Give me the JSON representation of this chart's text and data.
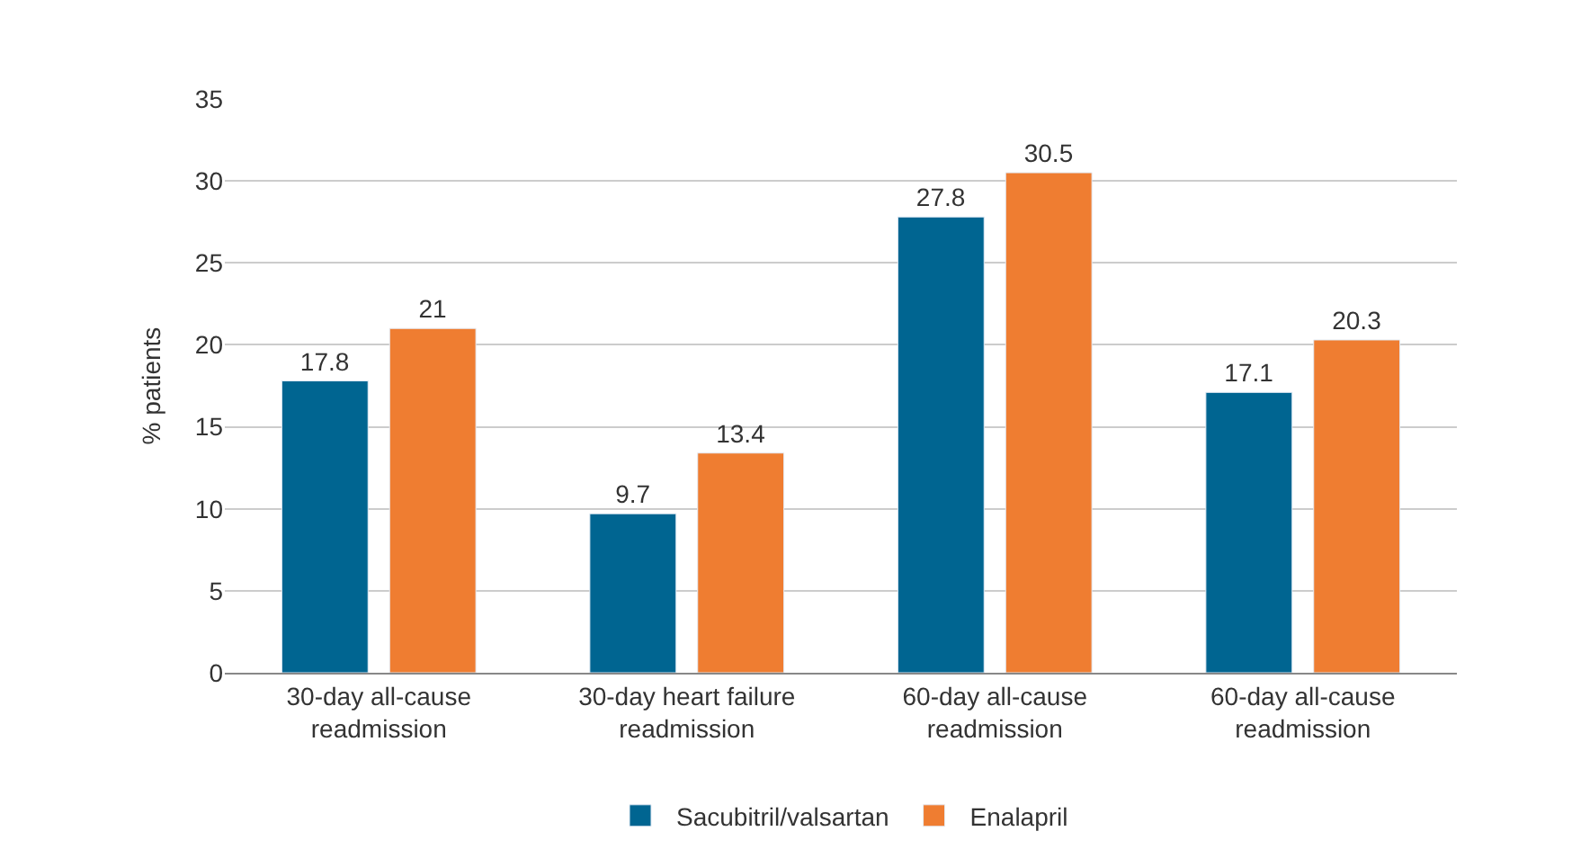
{
  "chart_data": {
    "type": "bar",
    "ylabel": "% patients",
    "categories": [
      "30-day all-cause\nreadmission",
      "30-day heart failure\nreadmission",
      "60-day all-cause\nreadmission",
      "60-day all-cause\nreadmission"
    ],
    "series": [
      {
        "name": "Sacubitril/valsartan",
        "color": "#006591",
        "values": [
          17.8,
          9.7,
          27.8,
          17.1
        ]
      },
      {
        "name": "Enalapril",
        "color": "#ef7d31",
        "values": [
          21,
          13.4,
          30.5,
          20.3
        ]
      }
    ],
    "ylim": [
      0,
      35
    ],
    "yticks": [
      0,
      5,
      10,
      15,
      20,
      25,
      30,
      35
    ],
    "grid": "y",
    "legend": "bottom",
    "data_labels": true
  }
}
